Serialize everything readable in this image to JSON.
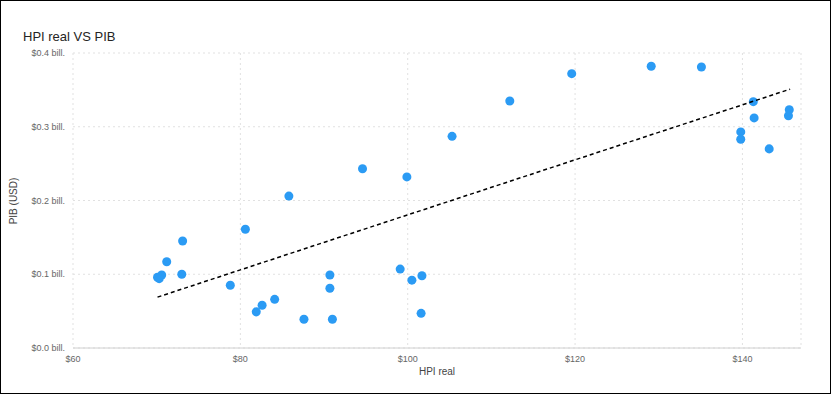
{
  "chart_data": {
    "type": "scatter",
    "title": "HPI real VS PIB",
    "x_label": "HPI real",
    "y_label": "PIB (USD)",
    "xlim": [
      60,
      147
    ],
    "xticks": [
      {
        "value": 60,
        "label": "$60"
      },
      {
        "value": 80,
        "label": "$80"
      },
      {
        "value": 100,
        "label": "$100"
      },
      {
        "value": 120,
        "label": "$120"
      },
      {
        "value": 140,
        "label": "$140"
      }
    ],
    "ylim": [
      0,
      0.4
    ],
    "yticks": [
      {
        "value": 0,
        "label": "$0.0 bill."
      },
      {
        "value": 0.1,
        "label": "$0.1 bill."
      },
      {
        "value": 0.2,
        "label": "$0.2 bill."
      },
      {
        "value": 0.3,
        "label": "$0.3 bill."
      },
      {
        "value": 0.4,
        "label": "$0.4 bill."
      }
    ],
    "grid": true,
    "series": [
      {
        "type": "scatter",
        "marker": "circle",
        "color": "#2b9bf4",
        "x": [
          70.1,
          70.6,
          70.3,
          71.2,
          73.1,
          73.0,
          78.8,
          80.6,
          81.9,
          82.6,
          84.1,
          85.8,
          87.6,
          90.7,
          90.7,
          91.0,
          94.6,
          99.1,
          99.9,
          100.5,
          101.7,
          101.6,
          105.3,
          112.2,
          119.6,
          129.1,
          135.1,
          139.8,
          139.8,
          141.3,
          141.4,
          143.2,
          145.6,
          145.5
        ],
        "values": [
          0.096,
          0.099,
          0.094,
          0.117,
          0.145,
          0.1,
          0.085,
          0.161,
          0.049,
          0.058,
          0.066,
          0.206,
          0.039,
          0.099,
          0.081,
          0.039,
          0.243,
          0.107,
          0.232,
          0.092,
          0.098,
          0.047,
          0.287,
          0.335,
          0.372,
          0.382,
          0.381,
          0.293,
          0.283,
          0.334,
          0.312,
          0.27,
          0.323,
          0.315
        ]
      },
      {
        "type": "line",
        "line_style": "dashed",
        "color": "#000000",
        "x": [
          70.1,
          145.7
        ],
        "values": [
          0.069,
          0.351
        ]
      }
    ]
  }
}
